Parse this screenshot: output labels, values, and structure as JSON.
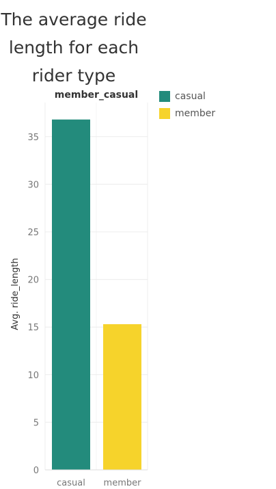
{
  "chart_data": {
    "type": "bar",
    "title_lines": [
      "The average ride",
      "length for each",
      "rider type"
    ],
    "header": "member_casual",
    "categories": [
      "casual",
      "member"
    ],
    "values": [
      36.8,
      15.3
    ],
    "colors": [
      "#238b7c",
      "#f6d32b"
    ],
    "ylabel": "Avg. ride_length",
    "xlabel": "",
    "ylim": [
      0,
      37
    ],
    "yticks": [
      0,
      5,
      10,
      15,
      20,
      25,
      30,
      35
    ],
    "grid": true,
    "legend": {
      "position": "top-right",
      "items": [
        {
          "label": "casual",
          "color": "#238b7c"
        },
        {
          "label": "member",
          "color": "#f6d32b"
        }
      ]
    }
  }
}
